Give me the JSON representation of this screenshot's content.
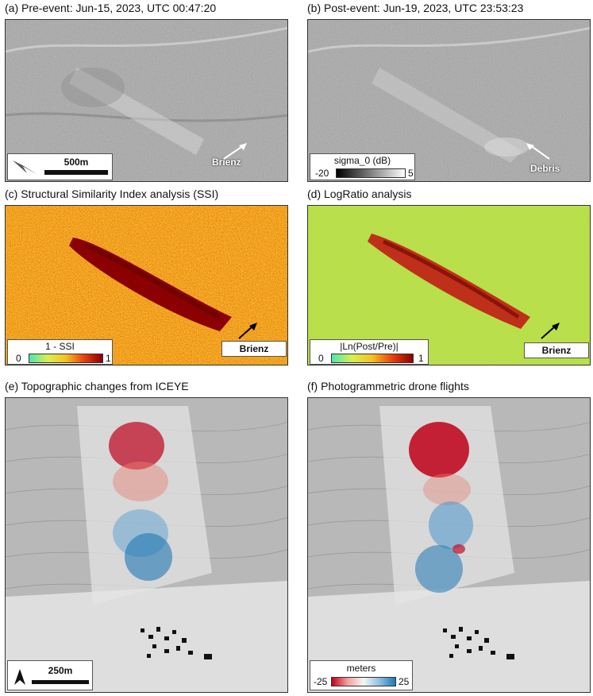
{
  "panels": {
    "a": {
      "title": "(a) Pre-event: Jun-15, 2023, UTC 00:47:20",
      "label": "Brienz",
      "scalebar": "500m"
    },
    "b": {
      "title": "(b) Post-event: Jun-19, 2023, UTC 23:53:23",
      "label": "Debris",
      "colorbar": {
        "title": "sigma_0 (dB)",
        "min": "-20",
        "max": "5"
      }
    },
    "c": {
      "title": "(c) Structural Similarity Index analysis (SSI)",
      "label": "Brienz",
      "colorbar": {
        "title": "1 - SSI",
        "min": "0",
        "max": "1"
      }
    },
    "d": {
      "title": "(d) LogRatio analysis",
      "label": "Brienz",
      "colorbar": {
        "title": "|Ln(Post/Pre)|",
        "min": "0",
        "max": "1"
      }
    },
    "e": {
      "title": "(e) Topographic changes from ICEYE",
      "scalebar": "250m"
    },
    "f": {
      "title": "(f) Photogrammetric drone flights",
      "colorbar": {
        "title": "meters",
        "min": "-25",
        "max": "25"
      }
    }
  },
  "colors": {
    "sar_gray": "#9a9a9a",
    "ssi_bg": "#f0a020",
    "ssi_dark": "#8b0000",
    "logratio_bg": "#b8e04a",
    "uplift_blue": "#1f78b4",
    "loss_red": "#c0102a",
    "map_gray": "#bdbdbd"
  }
}
